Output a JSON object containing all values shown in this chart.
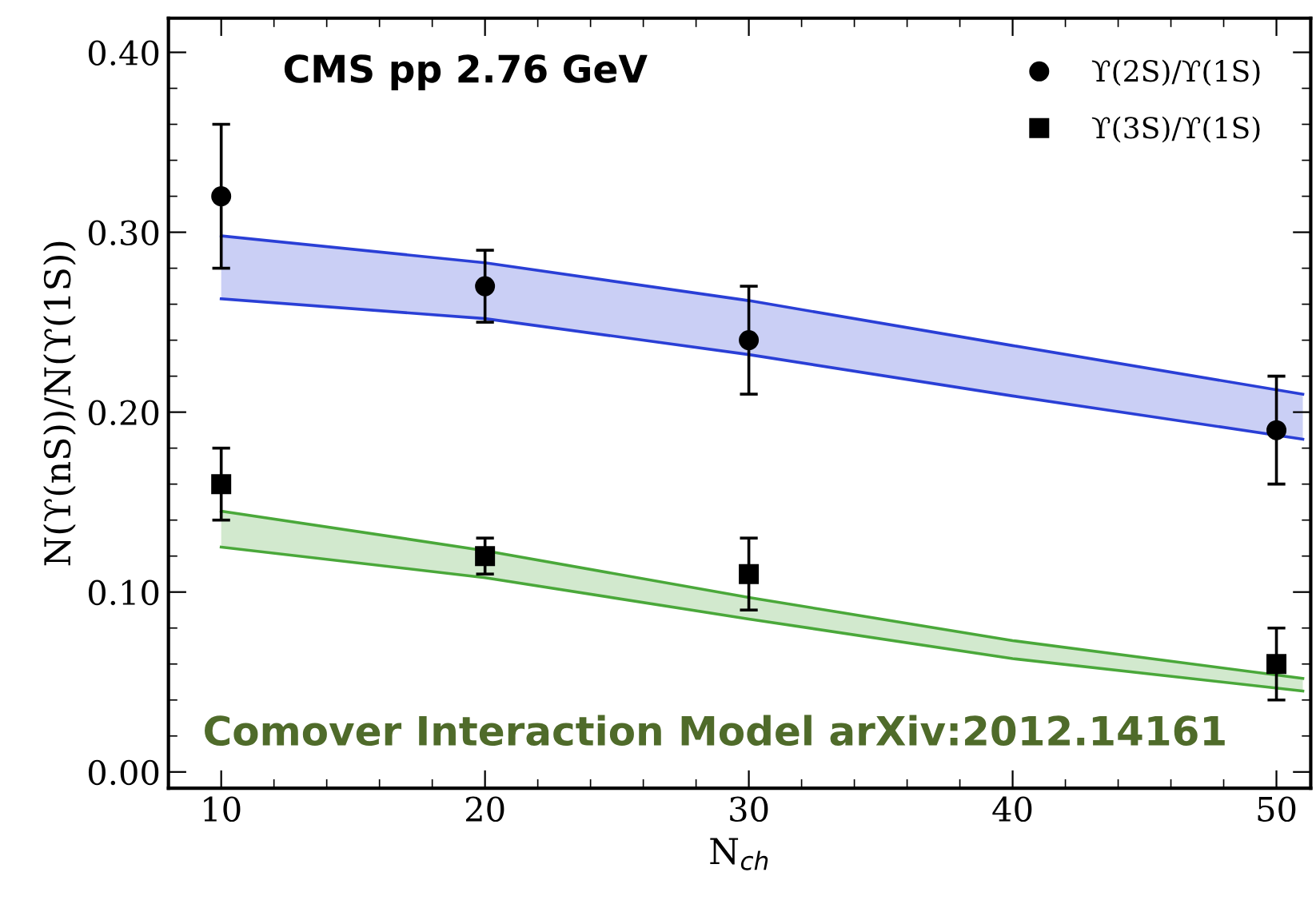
{
  "chart_data": {
    "type": "scatter",
    "xlabel": "N$_{ch}$",
    "ylabel": "N(ϒ(nS))/N(ϒ(1S))",
    "xlim": [
      8,
      51.3
    ],
    "ylim": [
      -0.009,
      0.419
    ],
    "xticks": [
      10,
      20,
      30,
      40,
      50
    ],
    "yticks": [
      {
        "value": 0,
        "label": "0.00"
      },
      {
        "value": 0.1,
        "label": "0.10"
      },
      {
        "value": 0.2,
        "label": "0.20"
      },
      {
        "value": 0.3,
        "label": "0.30"
      },
      {
        "value": 0.4,
        "label": "0.40"
      }
    ],
    "grid": false,
    "legend": "top right",
    "annotations": [
      "CMS pp 2.76 GeV",
      "Comover Interaction Model arXiv:2012.14161"
    ],
    "series": [
      {
        "type": "line",
        "color": "#2a3fd6",
        "x": [
          10,
          20,
          30,
          40,
          51
        ],
        "values": [
          0.298,
          0.283,
          0.262,
          0.237,
          0.21
        ],
        "upper": [
          0.298,
          0.283,
          0.262,
          0.237,
          0.21
        ],
        "lower": [
          0.263,
          0.252,
          0.232,
          0.209,
          0.185
        ]
      },
      {
        "type": "line",
        "color": "#2a3fd6",
        "x": [
          10,
          20,
          30,
          40,
          51
        ],
        "values": [
          0.263,
          0.252,
          0.232,
          0.209,
          0.185
        ]
      },
      {
        "type": "line",
        "color": "#4aa83a",
        "x": [
          10,
          20,
          30,
          40,
          51
        ],
        "values": [
          0.145,
          0.123,
          0.097,
          0.073,
          0.052
        ],
        "upper": [
          0.145,
          0.123,
          0.097,
          0.073,
          0.052
        ],
        "lower": [
          0.125,
          0.108,
          0.085,
          0.063,
          0.045
        ]
      },
      {
        "type": "line",
        "color": "#4aa83a",
        "x": [
          10,
          20,
          30,
          40,
          51
        ],
        "values": [
          0.125,
          0.108,
          0.085,
          0.063,
          0.045
        ]
      },
      {
        "name": "ϒ(2S)/ϒ(1S)",
        "color": "#000000",
        "marker": "circle",
        "x": [
          10,
          20,
          30,
          50
        ],
        "values": [
          0.32,
          0.27,
          0.24,
          0.19
        ],
        "errors": [
          0.04,
          0.02,
          0.03,
          0.03
        ]
      },
      {
        "name": "ϒ(3S)/ϒ(1S)",
        "color": "#000000",
        "marker": "square",
        "x": [
          10,
          20,
          30,
          50
        ],
        "values": [
          0.16,
          0.12,
          0.11,
          0.06
        ],
        "errors": [
          0.02,
          0.01,
          0.02,
          0.02
        ]
      }
    ]
  }
}
